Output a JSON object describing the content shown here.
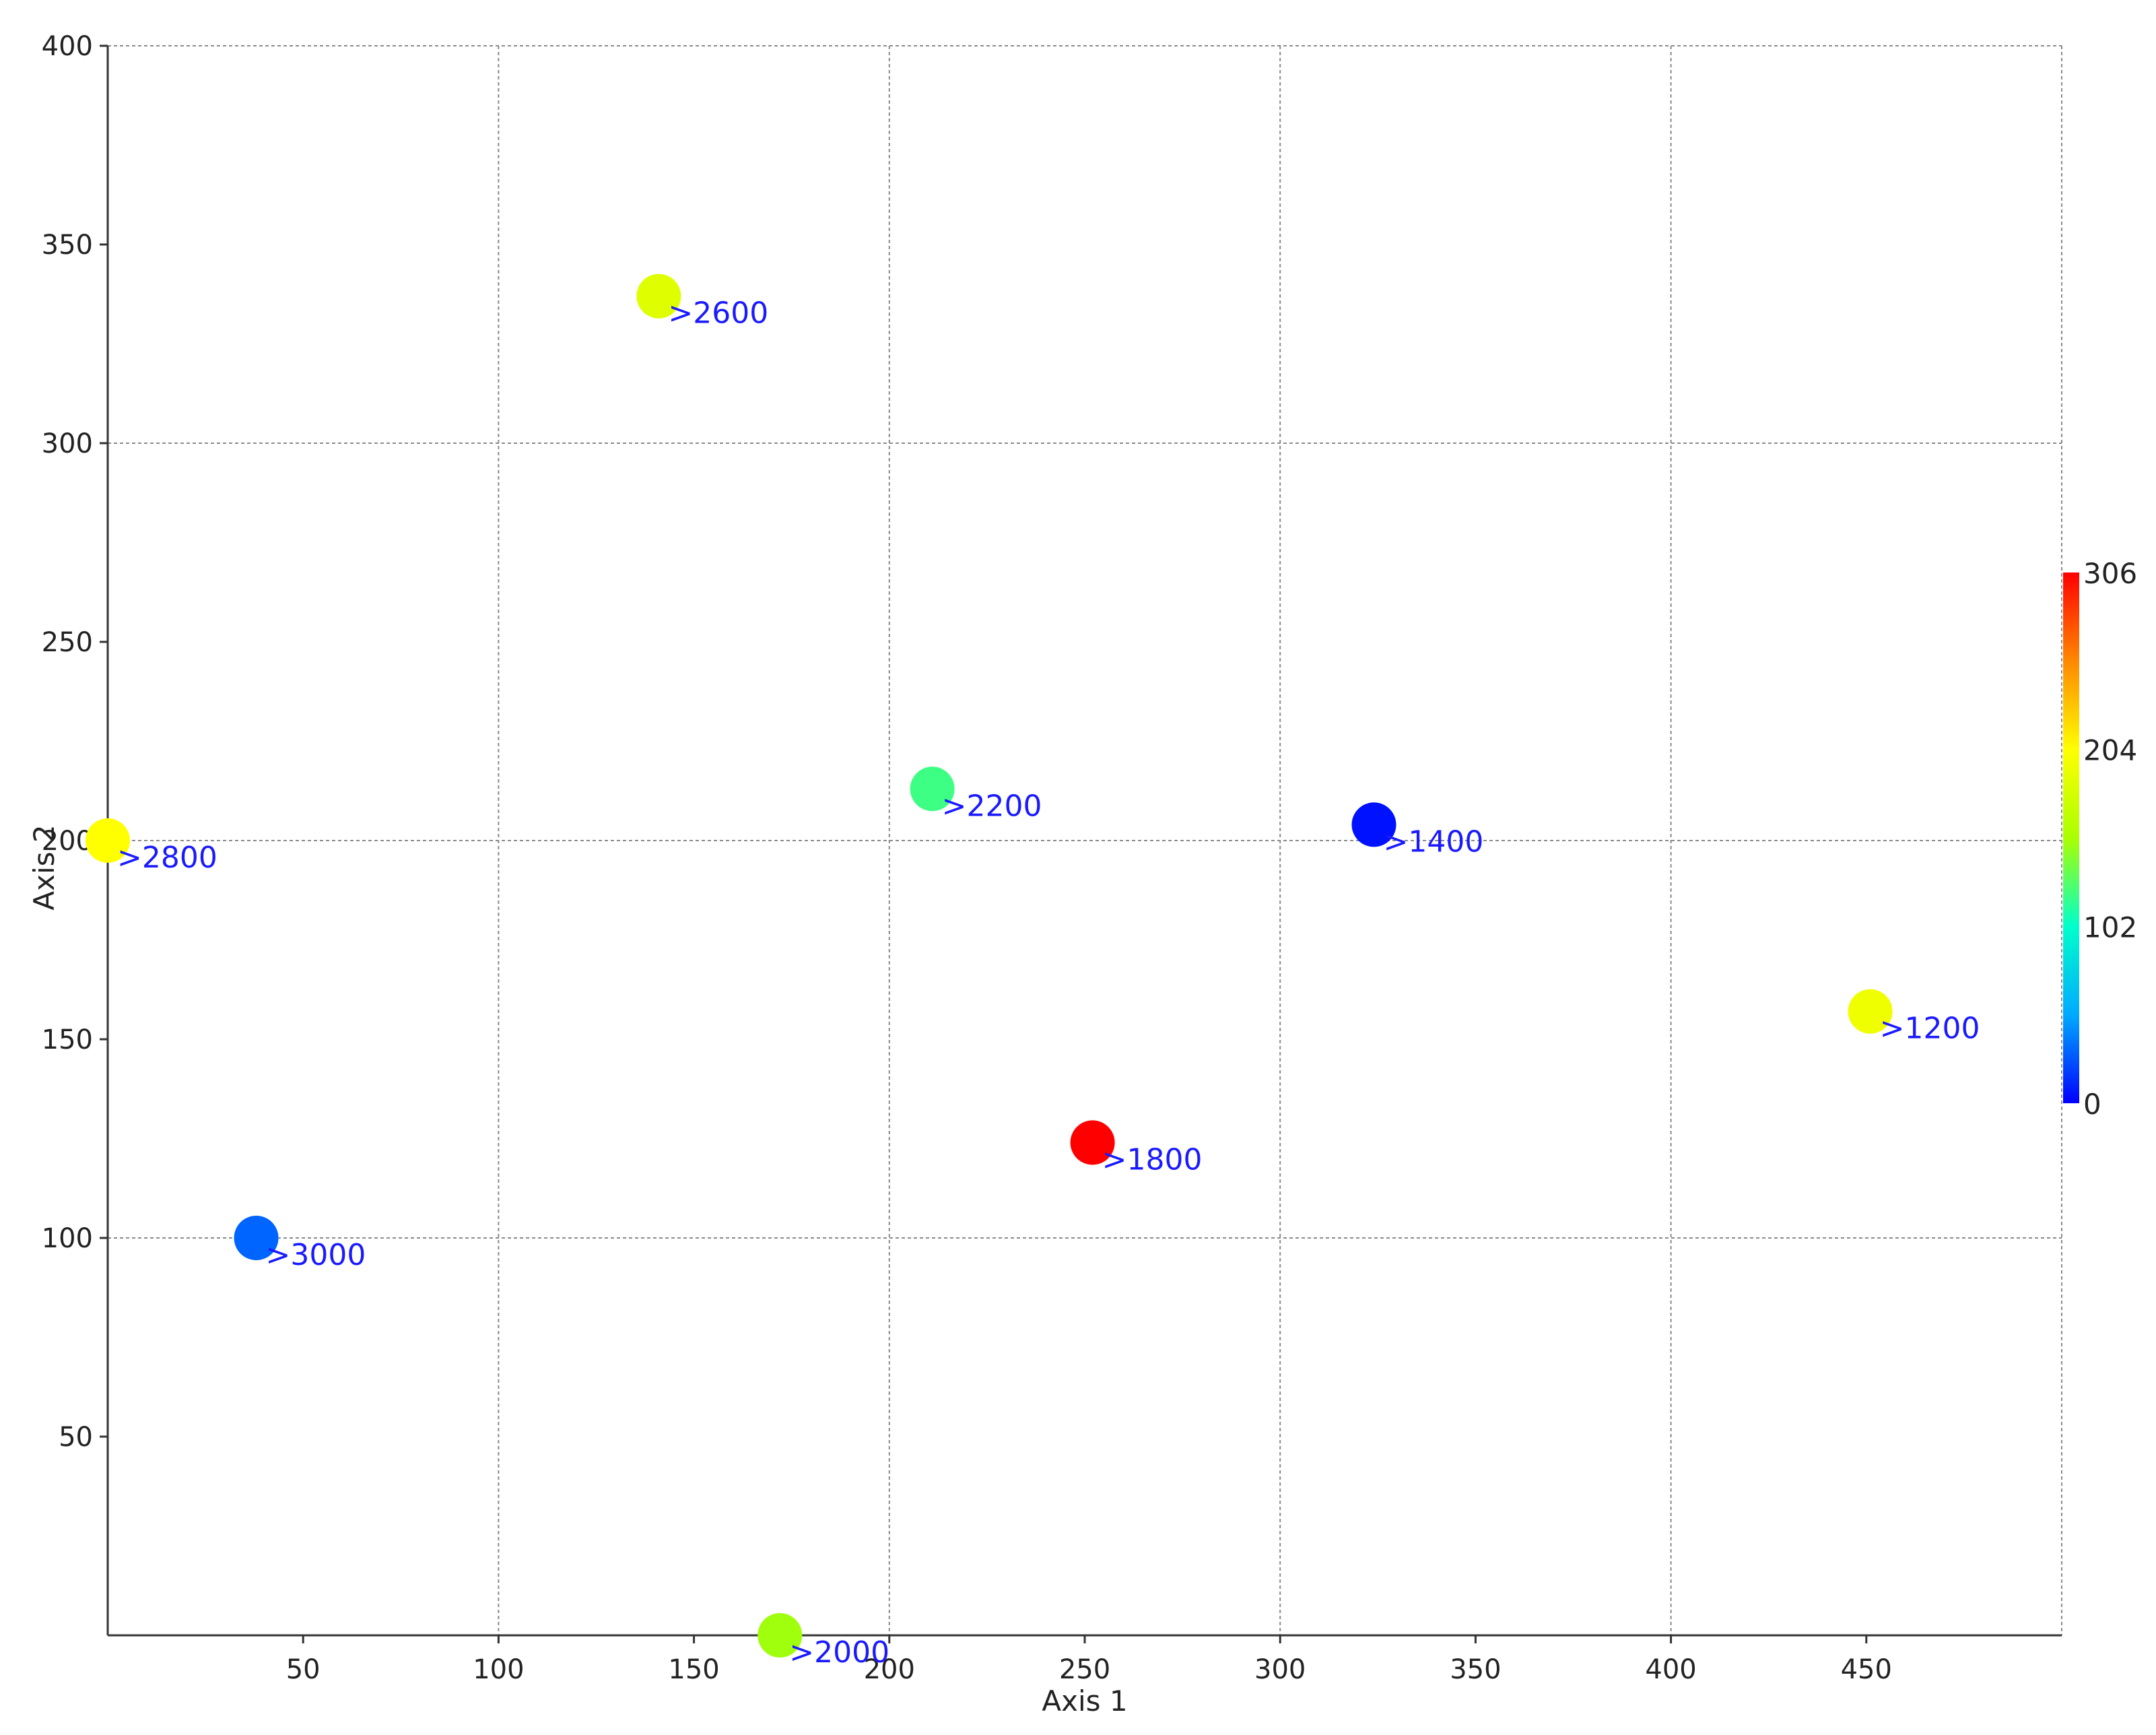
{
  "chart_data": {
    "type": "scatter",
    "title": "",
    "xlabel": "Axis 1",
    "ylabel": "Axis 2",
    "xlim": [
      0,
      500
    ],
    "ylim": [
      0,
      400
    ],
    "x_ticks": [
      50,
      100,
      150,
      200,
      250,
      300,
      350,
      400,
      450
    ],
    "y_ticks": [
      50,
      100,
      150,
      200,
      250,
      300,
      350,
      400
    ],
    "grid": true,
    "colorbar": {
      "min": 0,
      "max": 306,
      "ticks": [
        0,
        102,
        204,
        306
      ],
      "colormap": "jet-like",
      "colors": [
        "#0000ff",
        "#00aaff",
        "#00ffcc",
        "#aaff00",
        "#ffff00",
        "#ff8800",
        "#ff0000"
      ]
    },
    "points": [
      {
        "x": 0,
        "y": 200,
        "color_value": 204,
        "label": ">2800"
      },
      {
        "x": 38,
        "y": 100,
        "color_value": 30,
        "label": ">3000"
      },
      {
        "x": 141,
        "y": 337,
        "color_value": 185,
        "label": ">2600"
      },
      {
        "x": 172,
        "y": 0,
        "color_value": 150,
        "label": ">2000"
      },
      {
        "x": 211,
        "y": 213,
        "color_value": 120,
        "label": ">2200"
      },
      {
        "x": 252,
        "y": 124,
        "color_value": 306,
        "label": ">1800"
      },
      {
        "x": 324,
        "y": 204,
        "color_value": 5,
        "label": ">1400"
      },
      {
        "x": 451,
        "y": 157,
        "color_value": 195,
        "label": ">1200"
      }
    ]
  }
}
